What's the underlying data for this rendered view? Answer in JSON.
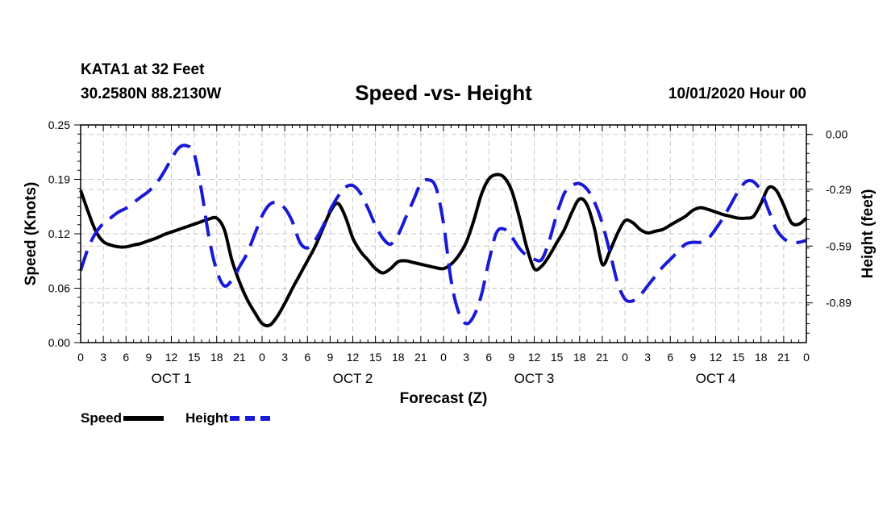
{
  "header": {
    "station": "KATA1 at 32 Feet",
    "coords": "30.2580N 88.2130W",
    "title": "Speed -vs- Height",
    "date": "10/01/2020 Hour 00"
  },
  "legend": {
    "speed_label": "Speed",
    "height_label": "Height"
  },
  "chart_data": {
    "type": "line",
    "title": "Speed -vs- Height",
    "xlabel": "Forecast (Z)",
    "ylabel": "Speed (Knots)",
    "y2label": "Height (feet)",
    "xlim": [
      0,
      96
    ],
    "ylim": [
      0,
      0.25
    ],
    "y2lim": [
      0.05,
      -1.1
    ],
    "grid": true,
    "yticks": [
      "0.00",
      "0.06",
      "0.12",
      "0.19",
      "0.25"
    ],
    "y2ticks": [
      "0.00",
      "-0.29",
      "-0.59",
      "-0.89"
    ],
    "xtick_labels": [
      "0",
      "3",
      "6",
      "9",
      "12",
      "15",
      "18",
      "21",
      "0",
      "3",
      "6",
      "9",
      "12",
      "15",
      "18",
      "21",
      "0",
      "3",
      "6",
      "9",
      "12",
      "15",
      "18",
      "21",
      "0",
      "3",
      "6",
      "9",
      "12",
      "15",
      "18",
      "21",
      "0"
    ],
    "day_labels": [
      "OCT 1",
      "OCT 2",
      "OCT 3",
      "OCT 4"
    ],
    "series": [
      {
        "name": "Speed",
        "axis": "left",
        "color": "#000000",
        "style": "solid",
        "x": [
          0,
          1,
          2,
          3,
          4,
          5,
          6,
          7,
          8,
          9,
          10,
          11,
          12,
          13,
          14,
          15,
          16,
          17,
          18,
          19,
          20,
          21,
          22,
          23,
          24,
          25,
          26,
          27,
          28,
          29,
          30,
          31,
          32,
          33,
          34,
          35,
          36,
          37,
          38,
          39,
          40,
          41,
          42,
          43,
          44,
          45,
          46,
          47,
          48,
          49,
          50,
          51,
          52,
          53,
          54,
          55,
          56,
          57,
          58,
          59,
          60,
          61,
          62,
          63,
          64,
          65,
          66,
          67,
          68,
          69,
          70,
          71,
          72,
          73,
          74,
          75,
          76,
          77,
          78,
          79,
          80,
          81,
          82,
          83,
          84,
          85,
          86,
          87,
          88,
          89,
          90,
          91,
          92,
          93,
          94,
          95,
          96
        ],
        "values": [
          0.175,
          0.15,
          0.128,
          0.116,
          0.112,
          0.11,
          0.11,
          0.112,
          0.114,
          0.117,
          0.12,
          0.124,
          0.127,
          0.13,
          0.133,
          0.136,
          0.139,
          0.142,
          0.143,
          0.13,
          0.095,
          0.07,
          0.05,
          0.035,
          0.022,
          0.02,
          0.03,
          0.045,
          0.062,
          0.078,
          0.094,
          0.11,
          0.13,
          0.15,
          0.16,
          0.145,
          0.12,
          0.105,
          0.095,
          0.085,
          0.08,
          0.085,
          0.093,
          0.094,
          0.092,
          0.09,
          0.088,
          0.086,
          0.085,
          0.09,
          0.1,
          0.115,
          0.14,
          0.17,
          0.188,
          0.193,
          0.19,
          0.175,
          0.145,
          0.11,
          0.085,
          0.088,
          0.1,
          0.115,
          0.13,
          0.15,
          0.165,
          0.158,
          0.13,
          0.09,
          0.105,
          0.125,
          0.14,
          0.138,
          0.13,
          0.126,
          0.128,
          0.13,
          0.135,
          0.14,
          0.145,
          0.152,
          0.155,
          0.153,
          0.15,
          0.147,
          0.145,
          0.143,
          0.143,
          0.145,
          0.16,
          0.178,
          0.175,
          0.158,
          0.138,
          0.136,
          0.143
        ]
      },
      {
        "name": "Height",
        "axis": "right",
        "color": "#1a1ad6",
        "style": "dashed",
        "x": [
          0,
          1,
          2,
          3,
          4,
          5,
          6,
          7,
          8,
          9,
          10,
          11,
          12,
          13,
          14,
          15,
          16,
          17,
          18,
          19,
          20,
          21,
          22,
          23,
          24,
          25,
          26,
          27,
          28,
          29,
          30,
          31,
          32,
          33,
          34,
          35,
          36,
          37,
          38,
          39,
          40,
          41,
          42,
          43,
          44,
          45,
          46,
          47,
          48,
          49,
          50,
          51,
          52,
          53,
          54,
          55,
          56,
          57,
          58,
          59,
          60,
          61,
          62,
          63,
          64,
          65,
          66,
          67,
          68,
          69,
          70,
          71,
          72,
          73,
          74,
          75,
          76,
          77,
          78,
          79,
          80,
          81,
          82,
          83,
          84,
          85,
          86,
          87,
          88,
          89,
          90,
          91,
          92,
          93,
          94,
          95,
          96
        ],
        "values": [
          -0.72,
          -0.6,
          -0.52,
          -0.47,
          -0.44,
          -0.41,
          -0.39,
          -0.36,
          -0.33,
          -0.3,
          -0.26,
          -0.2,
          -0.13,
          -0.07,
          -0.06,
          -0.1,
          -0.3,
          -0.55,
          -0.72,
          -0.8,
          -0.77,
          -0.7,
          -0.63,
          -0.53,
          -0.43,
          -0.37,
          -0.36,
          -0.39,
          -0.46,
          -0.57,
          -0.6,
          -0.56,
          -0.49,
          -0.4,
          -0.33,
          -0.28,
          -0.27,
          -0.31,
          -0.39,
          -0.48,
          -0.55,
          -0.58,
          -0.53,
          -0.44,
          -0.35,
          -0.26,
          -0.24,
          -0.28,
          -0.47,
          -0.77,
          -0.94,
          -1.0,
          -0.96,
          -0.85,
          -0.67,
          -0.52,
          -0.5,
          -0.54,
          -0.6,
          -0.64,
          -0.66,
          -0.66,
          -0.56,
          -0.42,
          -0.31,
          -0.27,
          -0.26,
          -0.29,
          -0.36,
          -0.47,
          -0.62,
          -0.78,
          -0.87,
          -0.88,
          -0.85,
          -0.8,
          -0.75,
          -0.7,
          -0.66,
          -0.62,
          -0.58,
          -0.57,
          -0.57,
          -0.55,
          -0.5,
          -0.44,
          -0.37,
          -0.3,
          -0.25,
          -0.25,
          -0.3,
          -0.4,
          -0.5,
          -0.55,
          -0.57,
          -0.57,
          -0.56
        ]
      }
    ]
  }
}
